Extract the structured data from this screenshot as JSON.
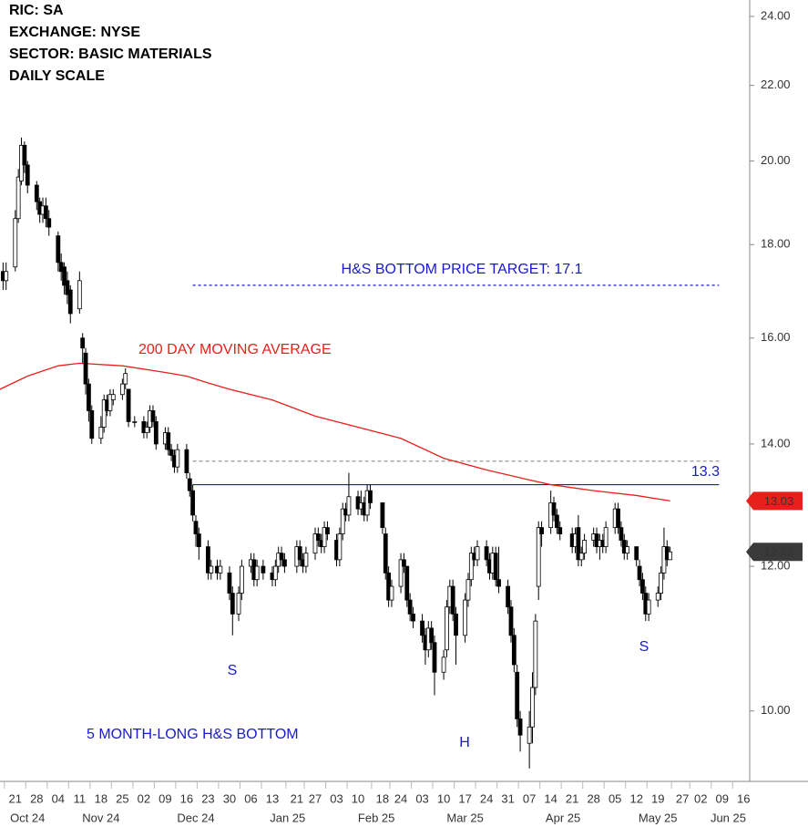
{
  "chart_data": {
    "type": "candlestick",
    "header": [
      "RIC:  SA",
      "EXCHANGE: NYSE",
      "SECTOR:  BASIC MATERIALS",
      "DAILY SCALE"
    ],
    "ylog": true,
    "ylim": [
      9.15,
      24.5
    ],
    "yticks": [
      {
        "value": 10,
        "label": "10.00"
      },
      {
        "value": 12,
        "label": "12.00"
      },
      {
        "value": 14,
        "label": "14.00"
      },
      {
        "value": 16,
        "label": "16.00"
      },
      {
        "value": 18,
        "label": "18.00"
      },
      {
        "value": 20,
        "label": "20.00"
      },
      {
        "value": 22,
        "label": "22.00"
      },
      {
        "value": 24,
        "label": "24.00"
      }
    ],
    "xlim": [
      "2024-10-16",
      "2025-06-18"
    ],
    "xticks": [
      {
        "value": "2024-10-21",
        "label": "21"
      },
      {
        "value": "2024-10-28",
        "label": "28"
      },
      {
        "value": "2024-11-04",
        "label": "04"
      },
      {
        "value": "2024-11-11",
        "label": "11"
      },
      {
        "value": "2024-11-18",
        "label": "18"
      },
      {
        "value": "2024-11-25",
        "label": "25"
      },
      {
        "value": "2024-12-02",
        "label": "02"
      },
      {
        "value": "2024-12-09",
        "label": "09"
      },
      {
        "value": "2024-12-16",
        "label": "16"
      },
      {
        "value": "2024-12-23",
        "label": "23"
      },
      {
        "value": "2024-12-30",
        "label": "30"
      },
      {
        "value": "2025-01-06",
        "label": "06"
      },
      {
        "value": "2025-01-13",
        "label": "13"
      },
      {
        "value": "2025-01-21",
        "label": "21"
      },
      {
        "value": "2025-01-27",
        "label": "27"
      },
      {
        "value": "2025-02-03",
        "label": "03"
      },
      {
        "value": "2025-02-10",
        "label": "10"
      },
      {
        "value": "2025-02-18",
        "label": "18"
      },
      {
        "value": "2025-02-24",
        "label": "24"
      },
      {
        "value": "2025-03-03",
        "label": "03"
      },
      {
        "value": "2025-03-10",
        "label": "10"
      },
      {
        "value": "2025-03-17",
        "label": "17"
      },
      {
        "value": "2025-03-24",
        "label": "24"
      },
      {
        "value": "2025-03-31",
        "label": "31"
      },
      {
        "value": "2025-04-07",
        "label": "07"
      },
      {
        "value": "2025-04-14",
        "label": "14"
      },
      {
        "value": "2025-04-21",
        "label": "21"
      },
      {
        "value": "2025-04-28",
        "label": "28"
      },
      {
        "value": "2025-05-05",
        "label": "05"
      },
      {
        "value": "2025-05-12",
        "label": "12"
      },
      {
        "value": "2025-05-19",
        "label": "19"
      },
      {
        "value": "2025-05-27",
        "label": "27"
      },
      {
        "value": "2025-06-02",
        "label": "02"
      },
      {
        "value": "2025-06-09",
        "label": "09"
      },
      {
        "value": "2025-06-16",
        "label": "16"
      }
    ],
    "xmonths": [
      {
        "value": "2024-10-25",
        "label": "Oct 24"
      },
      {
        "value": "2024-11-18",
        "label": "Nov 24"
      },
      {
        "value": "2024-12-19",
        "label": "Dec 24"
      },
      {
        "value": "2025-01-18",
        "label": "Jan 25"
      },
      {
        "value": "2025-02-16",
        "label": "Feb 25"
      },
      {
        "value": "2025-03-17",
        "label": "Mar 25"
      },
      {
        "value": "2025-04-18",
        "label": "Apr 25"
      },
      {
        "value": "2025-05-19",
        "label": "May 25"
      },
      {
        "value": "2025-06-11",
        "label": "Jun 25"
      }
    ],
    "x": [
      "2024-10-17",
      "2024-10-18",
      "2024-10-21",
      "2024-10-22",
      "2024-10-23",
      "2024-10-24",
      "2024-10-25",
      "2024-10-28",
      "2024-10-29",
      "2024-10-30",
      "2024-10-31",
      "2024-11-01",
      "2024-11-04",
      "2024-11-05",
      "2024-11-06",
      "2024-11-07",
      "2024-11-08",
      "2024-11-11",
      "2024-11-12",
      "2024-11-13",
      "2024-11-14",
      "2024-11-15",
      "2024-11-18",
      "2024-11-19",
      "2024-11-20",
      "2024-11-21",
      "2024-11-22",
      "2024-11-25",
      "2024-11-26",
      "2024-11-27",
      "2024-11-29",
      "2024-12-02",
      "2024-12-03",
      "2024-12-04",
      "2024-12-05",
      "2024-12-06",
      "2024-12-09",
      "2024-12-10",
      "2024-12-11",
      "2024-12-12",
      "2024-12-13",
      "2024-12-16",
      "2024-12-17",
      "2024-12-18",
      "2024-12-19",
      "2024-12-20",
      "2024-12-23",
      "2024-12-24",
      "2024-12-26",
      "2024-12-27",
      "2024-12-30",
      "2024-12-31",
      "2025-01-02",
      "2025-01-03",
      "2025-01-06",
      "2025-01-07",
      "2025-01-08",
      "2025-01-10",
      "2025-01-13",
      "2025-01-14",
      "2025-01-15",
      "2025-01-16",
      "2025-01-17",
      "2025-01-21",
      "2025-01-22",
      "2025-01-23",
      "2025-01-24",
      "2025-01-27",
      "2025-01-28",
      "2025-01-29",
      "2025-01-30",
      "2025-01-31",
      "2025-02-03",
      "2025-02-04",
      "2025-02-05",
      "2025-02-06",
      "2025-02-07",
      "2025-02-10",
      "2025-02-11",
      "2025-02-12",
      "2025-02-13",
      "2025-02-14",
      "2025-02-18",
      "2025-02-19",
      "2025-02-20",
      "2025-02-21",
      "2025-02-24",
      "2025-02-25",
      "2025-02-26",
      "2025-02-27",
      "2025-02-28",
      "2025-03-03",
      "2025-03-04",
      "2025-03-05",
      "2025-03-06",
      "2025-03-07",
      "2025-03-10",
      "2025-03-11",
      "2025-03-12",
      "2025-03-13",
      "2025-03-14",
      "2025-03-17",
      "2025-03-18",
      "2025-03-19",
      "2025-03-20",
      "2025-03-21",
      "2025-03-24",
      "2025-03-25",
      "2025-03-26",
      "2025-03-27",
      "2025-03-28",
      "2025-03-31",
      "2025-04-01",
      "2025-04-02",
      "2025-04-03",
      "2025-04-04",
      "2025-04-07",
      "2025-04-08",
      "2025-04-09",
      "2025-04-10",
      "2025-04-11",
      "2025-04-14",
      "2025-04-15",
      "2025-04-16",
      "2025-04-17",
      "2025-04-21",
      "2025-04-22",
      "2025-04-23",
      "2025-04-24",
      "2025-04-25",
      "2025-04-28",
      "2025-04-29",
      "2025-04-30",
      "2025-05-01",
      "2025-05-02",
      "2025-05-05",
      "2025-05-06",
      "2025-05-07",
      "2025-05-08",
      "2025-05-09",
      "2025-05-12",
      "2025-05-13",
      "2025-05-14",
      "2025-05-15",
      "2025-05-16",
      "2025-05-19",
      "2025-05-20",
      "2025-05-21",
      "2025-05-22",
      "2025-05-23"
    ],
    "ohlc": {
      "up_color": "#ffffff",
      "down_color": "#000000",
      "outline_color": "#000000",
      "open": [
        17.4,
        17.2,
        17.5,
        18.6,
        19.5,
        20.4,
        19.9,
        19.4,
        19.0,
        18.7,
        18.9,
        18.6,
        18.2,
        17.6,
        17.5,
        17.2,
        17.0,
        16.6,
        16.0,
        15.7,
        15.1,
        14.6,
        14.1,
        14.3,
        14.8,
        14.6,
        14.8,
        14.9,
        15.1,
        15.0,
        14.4,
        14.4,
        14.2,
        14.3,
        14.6,
        14.4,
        14.0,
        14.2,
        13.9,
        13.8,
        13.6,
        13.9,
        13.4,
        13.2,
        12.7,
        12.5,
        12.3,
        11.9,
        12.0,
        11.9,
        11.9,
        11.6,
        11.3,
        11.6,
        12.0,
        12.1,
        11.8,
        12.0,
        11.9,
        11.8,
        12.0,
        12.2,
        12.1,
        12.0,
        12.3,
        12.1,
        12.0,
        12.2,
        12.5,
        12.4,
        12.3,
        12.6,
        12.4,
        12.1,
        12.5,
        12.9,
        12.8,
        13.1,
        12.9,
        13.0,
        12.8,
        13.2,
        13.0,
        12.5,
        11.9,
        11.5,
        11.7,
        12.1,
        12.0,
        11.5,
        11.3,
        11.2,
        11.0,
        10.8,
        11.1,
        10.9,
        10.5,
        10.8,
        11.4,
        11.7,
        11.3,
        11.0,
        11.5,
        11.8,
        12.2,
        12.1,
        12.3,
        12.1,
        11.9,
        12.2,
        11.8,
        11.7,
        11.4,
        11.0,
        10.5,
        9.9,
        9.6,
        9.8,
        10.3,
        11.7,
        12.6,
        12.6,
        13.0,
        12.8,
        12.6,
        12.5,
        12.3,
        12.6,
        12.1,
        12.2,
        12.4,
        12.5,
        12.3,
        12.4,
        12.3,
        12.6,
        12.9,
        12.6,
        12.4,
        12.2,
        12.3,
        12.0,
        11.8,
        11.6,
        11.3,
        11.5,
        11.6,
        11.9,
        12.3,
        12.1
      ],
      "high": [
        17.6,
        17.6,
        18.8,
        19.8,
        20.6,
        20.5,
        20.0,
        19.5,
        19.1,
        19.1,
        19.1,
        18.8,
        18.3,
        17.8,
        17.6,
        17.4,
        17.1,
        17.4,
        16.1,
        15.8,
        15.2,
        14.7,
        14.5,
        14.9,
        14.9,
        15.0,
        15.0,
        15.2,
        15.4,
        15.0,
        14.5,
        14.5,
        14.4,
        14.7,
        14.7,
        14.5,
        14.3,
        14.3,
        14.0,
        13.9,
        14.0,
        14.0,
        13.5,
        13.3,
        12.8,
        12.6,
        12.4,
        12.1,
        12.1,
        12.1,
        12.0,
        11.7,
        11.7,
        12.1,
        12.2,
        12.2,
        12.1,
        12.1,
        12.0,
        12.1,
        12.3,
        12.3,
        12.2,
        12.4,
        12.4,
        12.2,
        12.3,
        12.6,
        12.6,
        12.5,
        12.7,
        12.7,
        12.5,
        12.6,
        13.0,
        13.0,
        13.5,
        13.2,
        13.2,
        13.1,
        13.3,
        13.3,
        13.0,
        12.6,
        12.0,
        11.8,
        12.2,
        12.2,
        12.0,
        11.6,
        11.4,
        11.3,
        11.1,
        11.2,
        11.2,
        11.0,
        10.8,
        11.5,
        11.8,
        11.8,
        11.4,
        11.6,
        11.9,
        12.3,
        12.3,
        12.4,
        12.4,
        12.2,
        12.3,
        12.3,
        12.3,
        11.8,
        11.5,
        11.1,
        10.6,
        10.0,
        10.0,
        10.5,
        11.3,
        12.7,
        12.7,
        13.2,
        13.1,
        12.9,
        12.7,
        12.6,
        12.6,
        12.8,
        12.3,
        12.5,
        12.6,
        12.6,
        12.5,
        12.5,
        12.7,
        13.0,
        13.0,
        12.7,
        12.5,
        12.4,
        12.3,
        12.1,
        11.9,
        11.7,
        11.6,
        11.7,
        12.0,
        12.6,
        12.4,
        12.3
      ],
      "low": [
        17.0,
        17.0,
        17.4,
        18.5,
        19.4,
        19.7,
        19.2,
        18.8,
        18.5,
        18.5,
        18.4,
        18.2,
        17.4,
        17.2,
        16.9,
        16.7,
        16.3,
        16.5,
        15.5,
        14.9,
        14.4,
        14.0,
        14.0,
        14.2,
        14.5,
        14.5,
        14.7,
        14.8,
        15.0,
        14.3,
        14.3,
        14.1,
        14.1,
        14.2,
        14.3,
        13.9,
        13.9,
        13.8,
        13.7,
        13.5,
        13.5,
        13.4,
        13.1,
        12.7,
        12.3,
        12.1,
        11.8,
        11.8,
        11.8,
        11.8,
        11.5,
        11.0,
        11.2,
        11.5,
        11.9,
        11.7,
        11.7,
        11.8,
        11.7,
        11.7,
        11.9,
        12.0,
        11.9,
        11.9,
        12.0,
        11.9,
        11.9,
        12.1,
        12.3,
        12.2,
        12.2,
        12.4,
        12.0,
        12.0,
        12.4,
        12.7,
        12.7,
        12.8,
        12.8,
        12.7,
        12.7,
        12.9,
        12.5,
        11.8,
        11.4,
        11.4,
        11.6,
        11.9,
        11.4,
        11.2,
        11.1,
        10.9,
        10.6,
        10.7,
        10.8,
        10.2,
        10.4,
        10.7,
        11.3,
        11.2,
        10.6,
        10.9,
        11.4,
        11.7,
        12.0,
        12.0,
        12.0,
        11.8,
        11.8,
        11.7,
        11.6,
        11.3,
        10.9,
        10.5,
        9.8,
        9.5,
        9.3,
        9.6,
        10.2,
        11.5,
        12.3,
        12.5,
        12.7,
        12.5,
        12.4,
        12.2,
        12.2,
        12.0,
        12.0,
        12.1,
        12.3,
        12.2,
        12.1,
        12.2,
        12.2,
        12.5,
        12.5,
        12.3,
        12.1,
        12.1,
        12.0,
        11.7,
        11.5,
        11.2,
        11.2,
        11.4,
        11.5,
        11.8,
        12.0,
        12.1
      ],
      "close": [
        17.2,
        17.4,
        18.6,
        19.6,
        20.4,
        19.9,
        19.4,
        19.0,
        18.7,
        18.9,
        18.6,
        18.4,
        17.6,
        17.4,
        17.1,
        16.9,
        16.5,
        17.2,
        15.8,
        15.1,
        14.6,
        14.1,
        14.3,
        14.8,
        14.6,
        14.9,
        14.9,
        15.1,
        15.3,
        14.4,
        14.4,
        14.2,
        14.3,
        14.6,
        14.4,
        14.0,
        14.2,
        13.9,
        13.8,
        13.6,
        13.9,
        13.5,
        13.2,
        12.8,
        12.5,
        12.3,
        11.9,
        12.0,
        11.9,
        12.0,
        11.6,
        11.3,
        11.6,
        12.0,
        12.1,
        11.8,
        12.0,
        11.9,
        11.8,
        12.0,
        12.2,
        12.1,
        12.0,
        12.3,
        12.1,
        12.0,
        12.2,
        12.5,
        12.4,
        12.3,
        12.6,
        12.5,
        12.1,
        12.5,
        12.9,
        12.8,
        13.1,
        12.9,
        13.0,
        12.8,
        13.2,
        13.0,
        12.6,
        11.9,
        11.5,
        11.7,
        12.1,
        12.0,
        11.5,
        11.3,
        11.2,
        11.0,
        10.8,
        11.1,
        10.9,
        10.5,
        10.7,
        11.4,
        11.7,
        11.3,
        11.0,
        11.5,
        11.8,
        12.2,
        12.1,
        12.3,
        12.1,
        11.9,
        12.2,
        11.8,
        11.7,
        11.4,
        11.0,
        10.6,
        9.9,
        9.7,
        9.8,
        10.3,
        11.2,
        12.6,
        12.5,
        13.0,
        12.8,
        12.6,
        12.5,
        12.3,
        12.5,
        12.1,
        12.2,
        12.4,
        12.5,
        12.3,
        12.4,
        12.3,
        12.6,
        12.9,
        12.6,
        12.4,
        12.2,
        12.3,
        12.1,
        11.8,
        11.6,
        11.3,
        11.5,
        11.6,
        11.9,
        12.3,
        12.1,
        12.22
      ],
      "last_color": "#3a3a3a"
    },
    "moving_average": {
      "name": "200 DAY MOVING AVERAGE",
      "color": "#e8201c",
      "x": [
        "2024-10-16",
        "2024-10-25",
        "2024-11-04",
        "2024-11-11",
        "2024-11-25",
        "2024-12-09",
        "2024-12-16",
        "2024-12-23",
        "2024-12-30",
        "2025-01-13",
        "2025-01-27",
        "2025-02-10",
        "2025-02-24",
        "2025-03-10",
        "2025-03-24",
        "2025-04-07",
        "2025-04-14",
        "2025-04-28",
        "2025-05-12",
        "2025-05-23"
      ],
      "values": [
        15.0,
        15.25,
        15.45,
        15.5,
        15.45,
        15.32,
        15.25,
        15.12,
        15.0,
        14.8,
        14.5,
        14.3,
        14.1,
        13.75,
        13.55,
        13.38,
        13.3,
        13.2,
        13.12,
        13.03
      ]
    },
    "levels": [
      {
        "value": 17.1,
        "color": "#1a1acc",
        "style": "dotted",
        "start": "2024-12-18",
        "end": "2025-06-08",
        "label": "H&S BOTTOM PRICE TARGET: 17.1"
      },
      {
        "value": 13.7,
        "color": "#999999",
        "style": "dashed",
        "start": "2024-12-18",
        "end": "2025-06-08"
      },
      {
        "value": 13.3,
        "color": "#1a1acc",
        "style": "solid",
        "start": "2024-12-18",
        "end": "2025-06-08"
      }
    ],
    "annotations": [
      "S",
      "H",
      "S",
      "5 MONTH-LONG H&S BOTTOM"
    ]
  }
}
